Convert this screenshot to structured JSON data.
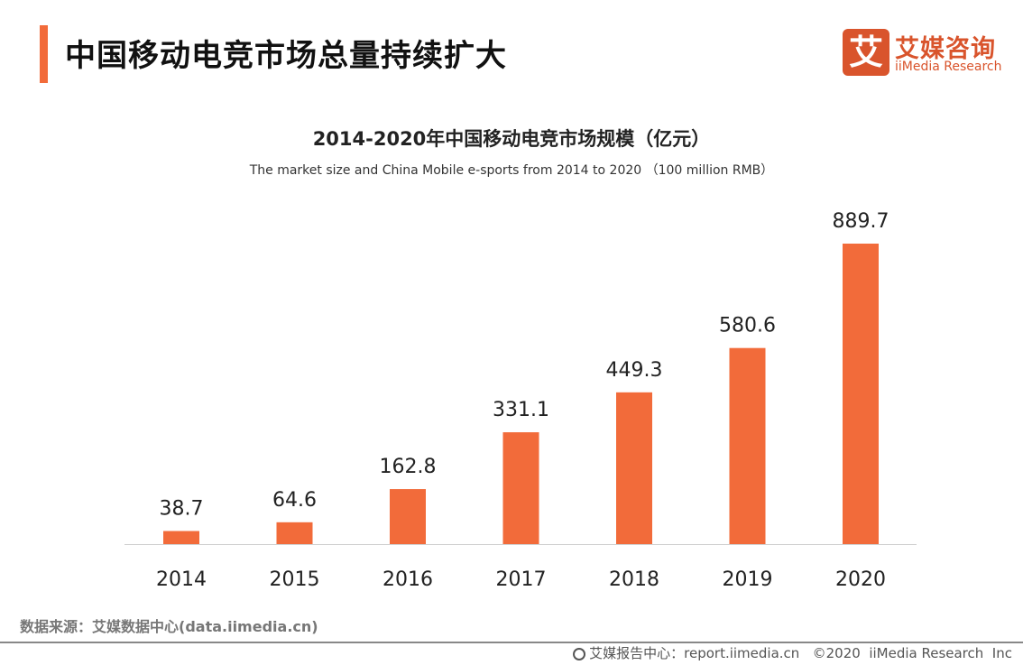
{
  "header": {
    "title": "中国移动电竞市场总量持续扩大"
  },
  "logo": {
    "mark": "艾",
    "name_cn": "艾媒咨询",
    "name_en": "iiMedia Research"
  },
  "colors": {
    "accent": "#f26b3a",
    "bar": "#f26b3a",
    "logo": "#d9542c"
  },
  "chart_data": {
    "type": "bar",
    "title": "2014-2020年中国移动电竞市场规模（亿元）",
    "subtitle": "The market size and China Mobile e-sports from 2014 to 2020 （100 million RMB）",
    "categories": [
      "2014",
      "2015",
      "2016",
      "2017",
      "2018",
      "2019",
      "2020"
    ],
    "values": [
      38.7,
      64.6,
      162.8,
      331.1,
      449.3,
      580.6,
      889.7
    ],
    "data_labels": [
      "38.7",
      "64.6",
      "162.8",
      "331.1",
      "449.3",
      "580.6",
      "889.7"
    ],
    "ylim": [
      0,
      889.7
    ],
    "grid": false,
    "xlabel": "",
    "ylabel": ""
  },
  "source": "数据来源：艾媒数据中心(data.iimedia.cn)",
  "footer": {
    "icon": "globe-icon",
    "text": "艾媒报告中心：report.iimedia.cn   ©2020  iiMedia Research  Inc"
  }
}
